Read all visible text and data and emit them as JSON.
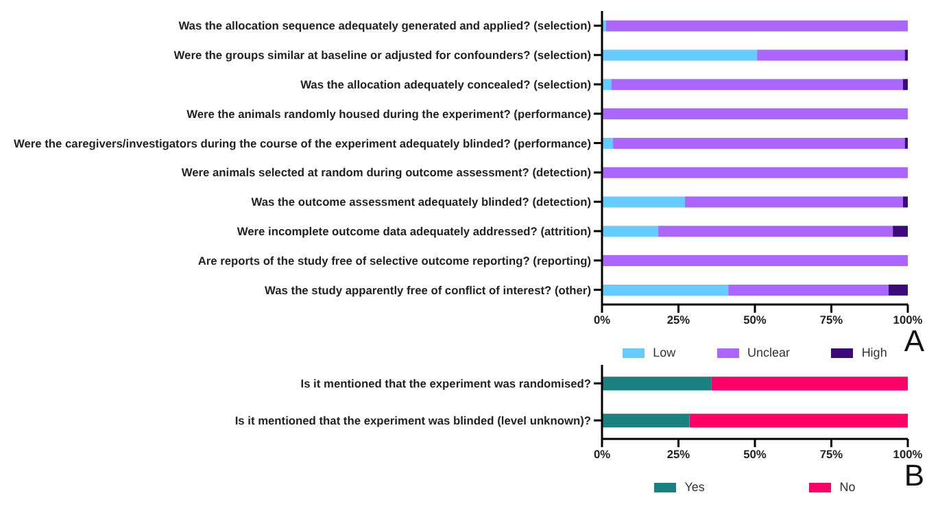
{
  "chart_data": [
    {
      "type": "bar",
      "orientation": "horizontal",
      "stacked": true,
      "categories": [
        "Was the allocation sequence adequately generated and applied? (selection)",
        "Were the groups similar at baseline or adjusted for confounders? (selection)",
        "Was the allocation adequately concealed? (selection)",
        "Were the animals randomly housed during the experiment? (performance)",
        "Were the caregivers/investigators during the course of the experiment adequately blinded? (performance)",
        "Were animals selected at random  during outcome assessment? (detection)",
        "Was the outcome assessment adequately blinded? (detection)",
        "Were incomplete outcome data adequately addressed? (attrition)",
        "Are reports of the study free of selective outcome reporting? (reporting)",
        "Was the study apparently free of conflict of interest? (other)"
      ],
      "series": [
        {
          "name": "Low",
          "color": "#66ccff",
          "values": [
            1.3,
            50.7,
            3,
            0,
            3.6,
            0,
            27.1,
            18.4,
            0,
            41.3
          ]
        },
        {
          "name": "Unclear",
          "color": "#aa66ff",
          "values": [
            98.7,
            48.3,
            95.4,
            100,
            95.4,
            100,
            71.3,
            76.7,
            100,
            52.4
          ]
        },
        {
          "name": "High",
          "color": "#3d0a7a",
          "values": [
            0,
            1,
            1.6,
            0,
            1,
            0,
            1.6,
            4.9,
            0,
            6.3
          ]
        }
      ],
      "xlim": [
        0,
        100
      ],
      "xticks": [
        {
          "value": 0,
          "label": "0%"
        },
        {
          "value": 25,
          "label": "25%"
        },
        {
          "value": 50,
          "label": "50%"
        },
        {
          "value": 75,
          "label": "75%"
        },
        {
          "value": 100,
          "label": "100%"
        }
      ],
      "legend": "bottom",
      "annotations": [
        "A"
      ]
    },
    {
      "type": "bar",
      "orientation": "horizontal",
      "stacked": true,
      "categories": [
        "Is it mentioned that the experiment was randomised?",
        "Is it mentioned that the experiment was blinded (level unknown)?"
      ],
      "series": [
        {
          "name": "Yes",
          "color": "#1a8080",
          "values": [
            35.7,
            28.6
          ]
        },
        {
          "name": "No",
          "color": "#ff0066",
          "values": [
            64.3,
            71.4
          ]
        }
      ],
      "xlim": [
        0,
        100
      ],
      "xticks": [
        {
          "value": 0,
          "label": "0%"
        },
        {
          "value": 25,
          "label": "25%"
        },
        {
          "value": 50,
          "label": "50%"
        },
        {
          "value": 75,
          "label": "75%"
        },
        {
          "value": 100,
          "label": "100%"
        }
      ],
      "legend": "bottom",
      "annotations": [
        "B"
      ]
    }
  ]
}
